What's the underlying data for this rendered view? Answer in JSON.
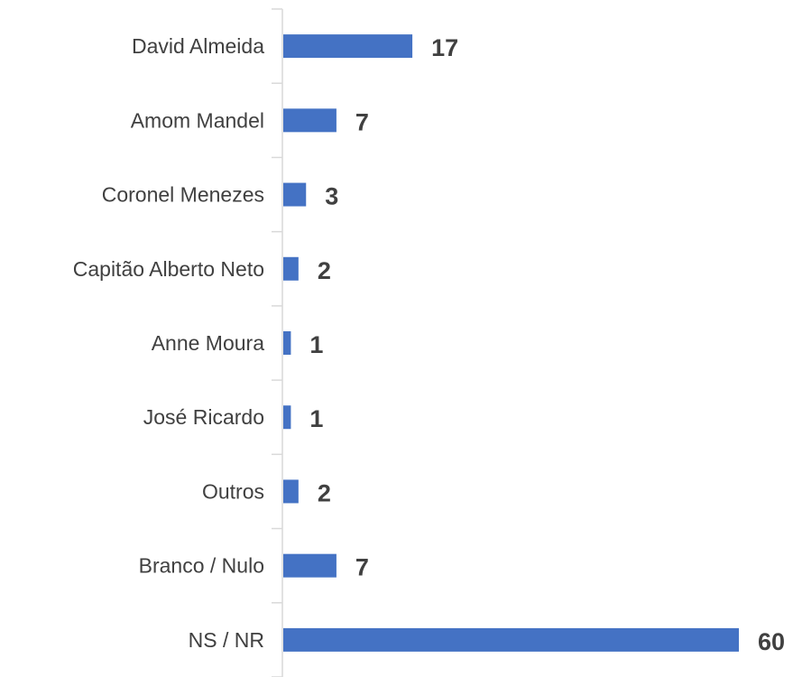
{
  "chart_data": {
    "type": "bar",
    "orientation": "horizontal",
    "categories": [
      "David Almeida",
      "Amom Mandel",
      "Coronel Menezes",
      "Capitão Alberto Neto",
      "Anne Moura",
      "José Ricardo",
      "Outros",
      "Branco / Nulo",
      "NS / NR"
    ],
    "values": [
      17,
      7,
      3,
      2,
      1,
      1,
      2,
      7,
      60
    ],
    "data_labels": [
      "17",
      "7",
      "3",
      "2",
      "1",
      "1",
      "2",
      "7",
      "60"
    ],
    "title": "",
    "xlabel": "",
    "ylabel": "",
    "xlim": [
      0,
      60
    ],
    "grid": false,
    "legend": "none",
    "bar_color": "#4472C4",
    "axis_color": "#D9D9D9",
    "label_color": "#404040"
  }
}
